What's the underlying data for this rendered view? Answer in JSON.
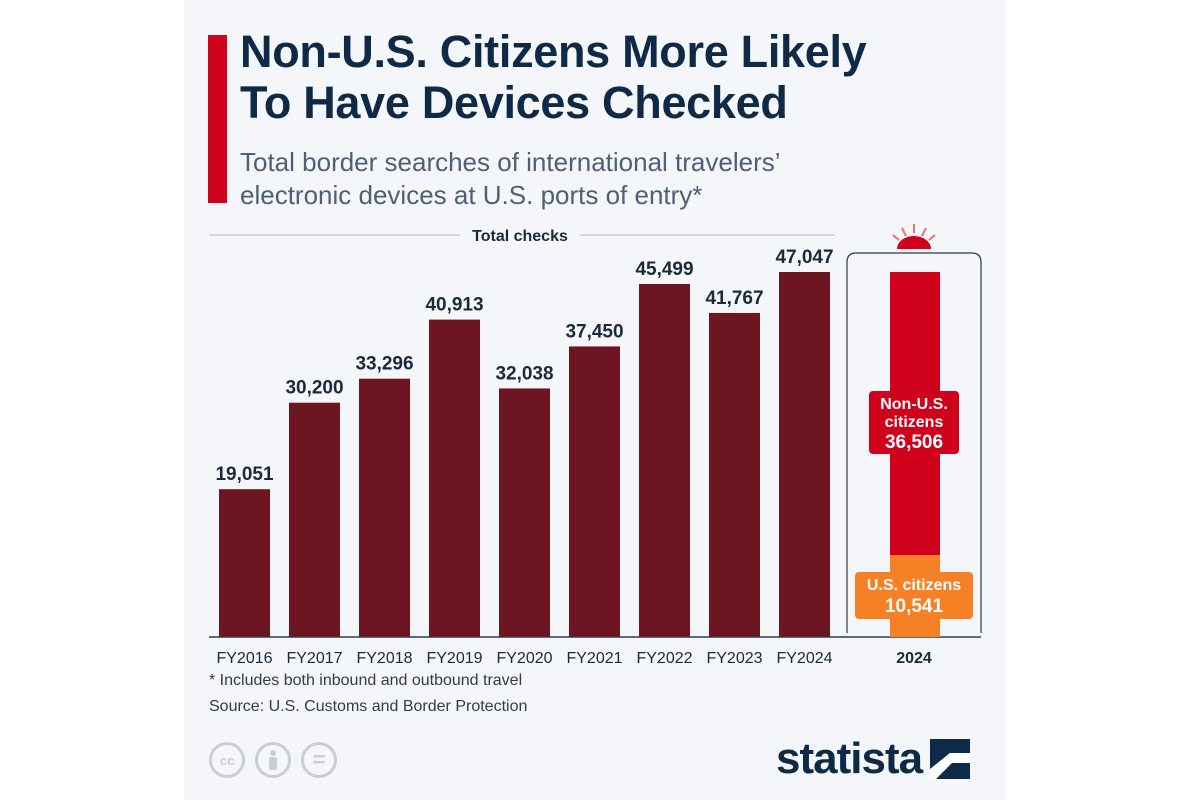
{
  "header": {
    "title_line1": "Non-U.S. Citizens More Likely",
    "title_line2": "To Have Devices Checked",
    "subtitle_line1": "Total border searches of international travelers’",
    "subtitle_line2": "electronic devices at U.S. ports of entry*"
  },
  "chart_data": {
    "type": "bar",
    "title": "Total checks",
    "categories": [
      "FY2016",
      "FY2017",
      "FY2018",
      "FY2019",
      "FY2020",
      "FY2021",
      "FY2022",
      "FY2023",
      "FY2024"
    ],
    "values": [
      19051,
      30200,
      33296,
      40913,
      32038,
      37450,
      45499,
      41767,
      47047
    ],
    "value_labels": [
      "19,051",
      "30,200",
      "33,296",
      "40,913",
      "32,038",
      "37,450",
      "45,499",
      "41,767",
      "47,047"
    ],
    "bar_color": "#6d1520",
    "ylim": [
      0,
      47047
    ],
    "grid": false,
    "breakdown": {
      "category": "2024",
      "type": "stacked_bar",
      "segments": [
        {
          "name": "U.S. citizens",
          "value": 10541,
          "value_label": "10,541",
          "color": "#f58025"
        },
        {
          "name_line1": "Non-U.S.",
          "name_line2": "citizens",
          "value": 36506,
          "value_label": "36,506",
          "color": "#d0021b"
        }
      ]
    }
  },
  "footer": {
    "note": "* Includes both inbound and outbound travel",
    "source": "Source: U.S. Customs and Border Protection",
    "license_icons": [
      "creative-commons-icon",
      "attribution-icon",
      "no-derivatives-icon"
    ],
    "cc_text": "cc",
    "nd_text": "="
  },
  "brand": {
    "name": "statista",
    "color": "#0f2a47",
    "accent": "#d0021b"
  }
}
